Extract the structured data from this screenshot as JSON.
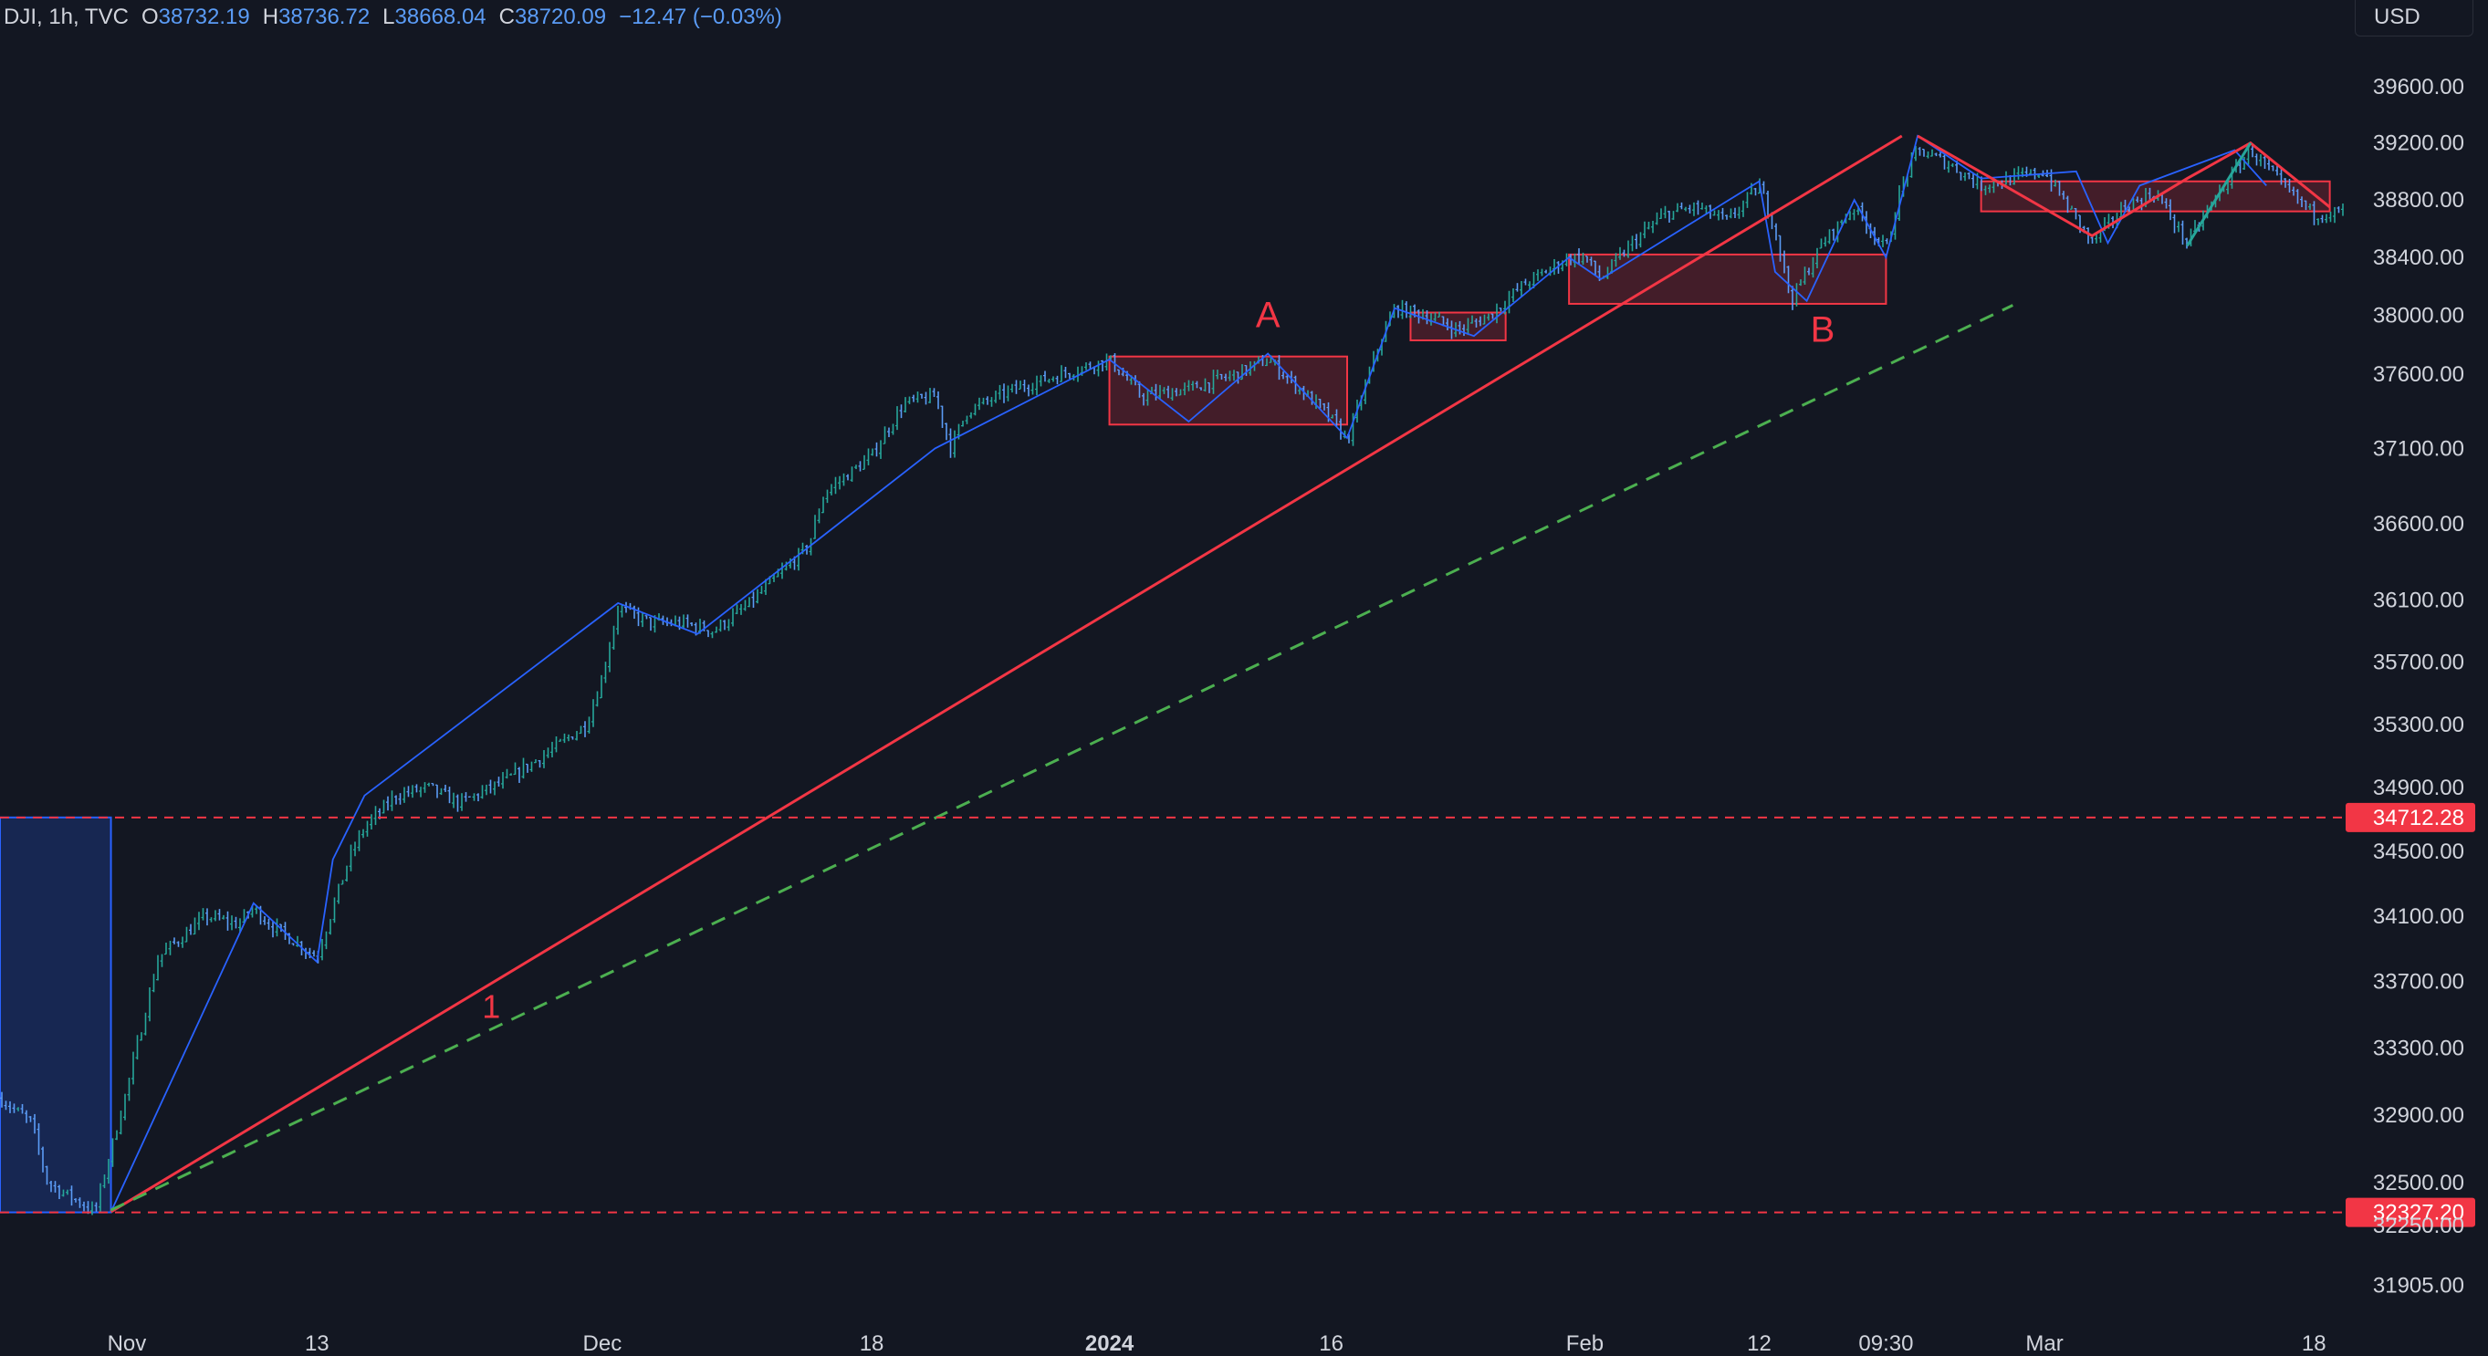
{
  "header": {
    "symbol": "DJI, 1h, TVC",
    "open_label": "O",
    "open": "38732.19",
    "high_label": "H",
    "high": "38736.72",
    "low_label": "L",
    "low": "38668.04",
    "close_label": "C",
    "close": "38720.09",
    "change": "−12.47 (−0.03%)"
  },
  "currency_button": "USD",
  "colors": {
    "background": "#131722",
    "up": "#26a69a",
    "down": "#5b9cf6",
    "red": "#f23645",
    "green_dashed": "#4caf50",
    "blue_line": "#2962ff",
    "text": "#d1d4dc",
    "header_value": "#5b9cf6"
  },
  "chart_data": {
    "type": "ohlc",
    "symbol": "DJI",
    "interval": "1h",
    "y_scale": "log",
    "ylim": [
      31740,
      39960
    ],
    "y_ticks": [
      39600,
      39200,
      38800,
      38400,
      38000,
      37600,
      37100,
      36600,
      36100,
      35700,
      35300,
      34900,
      34500,
      34100,
      33700,
      33300,
      32900,
      32500,
      32250,
      31905
    ],
    "y_tick_labels": [
      "39600.00",
      "39200.00",
      "38800.00",
      "38400.00",
      "38000.00",
      "37600.00",
      "37100.00",
      "36600.00",
      "36100.00",
      "35700.00",
      "35300.00",
      "34900.00",
      "34500.00",
      "34100.00",
      "33700.00",
      "33300.00",
      "32900.00",
      "32500.00",
      "32250.00",
      "31905.00"
    ],
    "time_range": [
      "2023-10-24",
      "2024-03-20"
    ],
    "x_ticks": [
      {
        "label": "Nov",
        "date": "2023-11-01",
        "bold": false
      },
      {
        "label": "13",
        "date": "2023-11-13",
        "bold": false
      },
      {
        "label": "Dec",
        "date": "2023-12-01",
        "bold": false
      },
      {
        "label": "18",
        "date": "2023-12-18",
        "bold": false
      },
      {
        "label": "2024",
        "date": "2024-01-02",
        "bold": true
      },
      {
        "label": "16",
        "date": "2024-01-16",
        "bold": false
      },
      {
        "label": "Feb",
        "date": "2024-02-01",
        "bold": false
      },
      {
        "label": "12",
        "date": "2024-02-12",
        "bold": false
      },
      {
        "label": "09:30",
        "date": "2024-02-20",
        "bold": false
      },
      {
        "label": "Mar",
        "date": "2024-03-01",
        "bold": false
      },
      {
        "label": "18",
        "date": "2024-03-18",
        "bold": false
      }
    ],
    "price_path": [
      [
        "2023-10-24",
        33000
      ],
      [
        "2023-10-26",
        32850
      ],
      [
        "2023-10-27",
        32500
      ],
      [
        "2023-10-30",
        32330
      ],
      [
        "2023-11-01",
        33050
      ],
      [
        "2023-11-03",
        33850
      ],
      [
        "2023-11-06",
        34100
      ],
      [
        "2023-11-08",
        34050
      ],
      [
        "2023-11-09",
        34150
      ],
      [
        "2023-11-10",
        34050
      ],
      [
        "2023-11-13",
        33850
      ],
      [
        "2023-11-15",
        34450
      ],
      [
        "2023-11-16",
        34650
      ],
      [
        "2023-11-18",
        34850
      ],
      [
        "2023-11-20",
        34900
      ],
      [
        "2023-11-22",
        34800
      ],
      [
        "2023-11-25",
        34950
      ],
      [
        "2023-11-28",
        35150
      ],
      [
        "2023-11-30",
        35300
      ],
      [
        "2023-12-01",
        35600
      ],
      [
        "2023-12-02",
        36050
      ],
      [
        "2023-12-04",
        35950
      ],
      [
        "2023-12-06",
        35950
      ],
      [
        "2023-12-08",
        35900
      ],
      [
        "2023-12-10",
        36050
      ],
      [
        "2023-12-12",
        36250
      ],
      [
        "2023-12-14",
        36450
      ],
      [
        "2023-12-15",
        36800
      ],
      [
        "2023-12-18",
        37050
      ],
      [
        "2023-12-20",
        37400
      ],
      [
        "2023-12-22",
        37450
      ],
      [
        "2023-12-23",
        37100
      ],
      [
        "2023-12-24",
        37350
      ],
      [
        "2023-12-27",
        37500
      ],
      [
        "2023-12-30",
        37600
      ],
      [
        "2024-01-02",
        37700
      ],
      [
        "2024-01-04",
        37450
      ],
      [
        "2024-01-07",
        37500
      ],
      [
        "2024-01-10",
        37600
      ],
      [
        "2024-01-12",
        37700
      ],
      [
        "2024-01-14",
        37500
      ],
      [
        "2024-01-16",
        37300
      ],
      [
        "2024-01-17",
        37150
      ],
      [
        "2024-01-19",
        37800
      ],
      [
        "2024-01-20",
        38050
      ],
      [
        "2024-01-22",
        38000
      ],
      [
        "2024-01-24",
        37900
      ],
      [
        "2024-01-26",
        38000
      ],
      [
        "2024-01-28",
        38200
      ],
      [
        "2024-01-31",
        38400
      ],
      [
        "2024-02-01",
        38400
      ],
      [
        "2024-02-02",
        38250
      ],
      [
        "2024-02-04",
        38500
      ],
      [
        "2024-02-06",
        38700
      ],
      [
        "2024-02-08",
        38750
      ],
      [
        "2024-02-10",
        38650
      ],
      [
        "2024-02-12",
        38900
      ],
      [
        "2024-02-13",
        38600
      ],
      [
        "2024-02-14",
        38100
      ],
      [
        "2024-02-16",
        38500
      ],
      [
        "2024-02-18",
        38750
      ],
      [
        "2024-02-20",
        38450
      ],
      [
        "2024-02-21",
        38900
      ],
      [
        "2024-02-22",
        39150
      ],
      [
        "2024-02-24",
        39050
      ],
      [
        "2024-02-26",
        38900
      ],
      [
        "2024-02-28",
        38950
      ],
      [
        "2024-03-01",
        39000
      ],
      [
        "2024-03-04",
        38500
      ],
      [
        "2024-03-06",
        38750
      ],
      [
        "2024-03-08",
        38850
      ],
      [
        "2024-03-10",
        38500
      ],
      [
        "2024-03-12",
        38850
      ],
      [
        "2024-03-14",
        39150
      ],
      [
        "2024-03-16",
        38900
      ],
      [
        "2024-03-18",
        38700
      ],
      [
        "2024-03-20",
        38720
      ]
    ],
    "horizontal_lines": [
      {
        "price": 34712.28,
        "label": "34712.28",
        "color": "#f23645",
        "style": "dashed"
      },
      {
        "price": 32327.2,
        "label": "32327.20",
        "color": "#f23645",
        "style": "dashed"
      }
    ],
    "trend_lines": [
      {
        "name": "red-trendline",
        "color": "#f23645",
        "style": "solid",
        "points": [
          [
            "2023-10-31",
            32330
          ],
          [
            "2024-02-21",
            39250
          ]
        ]
      },
      {
        "name": "green-dashed-trendline",
        "color": "#4caf50",
        "style": "dashed",
        "points": [
          [
            "2023-10-31",
            32340
          ],
          [
            "2024-02-28",
            38070
          ]
        ]
      }
    ],
    "wave_lines": [
      {
        "name": "blue-wave",
        "color": "#2962ff",
        "points": [
          [
            "2023-10-31",
            32330
          ],
          [
            "2023-11-09",
            34180
          ],
          [
            "2023-11-13",
            33820
          ],
          [
            "2023-11-14",
            34450
          ],
          [
            "2023-11-16",
            34850
          ],
          [
            "2023-12-02",
            36080
          ],
          [
            "2023-12-07",
            35880
          ],
          [
            "2023-12-22",
            37100
          ],
          [
            "2024-01-02",
            37700
          ],
          [
            "2024-01-07",
            37280
          ],
          [
            "2024-01-12",
            37740
          ],
          [
            "2024-01-17",
            37170
          ],
          [
            "2024-01-20",
            38050
          ],
          [
            "2024-01-25",
            37860
          ],
          [
            "2024-01-31",
            38400
          ],
          [
            "2024-02-02",
            38250
          ],
          [
            "2024-02-12",
            38930
          ],
          [
            "2024-02-13",
            38300
          ],
          [
            "2024-02-15",
            38100
          ],
          [
            "2024-02-18",
            38800
          ],
          [
            "2024-02-20",
            38400
          ],
          [
            "2024-02-22",
            39250
          ],
          [
            "2024-02-26",
            38950
          ],
          [
            "2024-03-03",
            39000
          ],
          [
            "2024-03-05",
            38500
          ],
          [
            "2024-03-07",
            38900
          ],
          [
            "2024-03-13",
            39150
          ],
          [
            "2024-03-15",
            38900
          ]
        ]
      },
      {
        "name": "red-wave",
        "color": "#f23645",
        "points": [
          [
            "2024-02-22",
            39250
          ],
          [
            "2024-03-04",
            38550
          ],
          [
            "2024-03-10",
            38950
          ],
          [
            "2024-03-14",
            39200
          ],
          [
            "2024-03-19",
            38750
          ]
        ]
      },
      {
        "name": "teal-wave",
        "color": "#26a69a",
        "points": [
          [
            "2024-03-10",
            38480
          ],
          [
            "2024-03-14",
            39200
          ]
        ]
      }
    ],
    "range_boxes": [
      {
        "name": "box-a",
        "from": "2024-01-02",
        "to": "2024-01-17",
        "top": 37720,
        "bottom": 37260
      },
      {
        "name": "box-small",
        "from": "2024-01-21",
        "to": "2024-01-27",
        "top": 38020,
        "bottom": 37830
      },
      {
        "name": "box-b",
        "from": "2024-01-31",
        "to": "2024-02-20",
        "top": 38420,
        "bottom": 38080
      },
      {
        "name": "box-c",
        "from": "2024-02-26",
        "to": "2024-03-19",
        "top": 38930,
        "bottom": 38720
      }
    ],
    "labels": [
      {
        "name": "label-a",
        "text": "A",
        "date": "2024-01-12",
        "price": 37920,
        "color": "#f23645"
      },
      {
        "name": "label-b",
        "text": "B",
        "date": "2024-02-16",
        "price": 37820,
        "color": "#f23645"
      },
      {
        "name": "label-1",
        "text": "1",
        "date": "2023-11-24",
        "price": 33480,
        "color": "#f23645"
      }
    ],
    "left_box": {
      "name": "left-blue-box",
      "to": "2023-10-31",
      "top": 34712.28,
      "bottom": 32327.2
    }
  }
}
